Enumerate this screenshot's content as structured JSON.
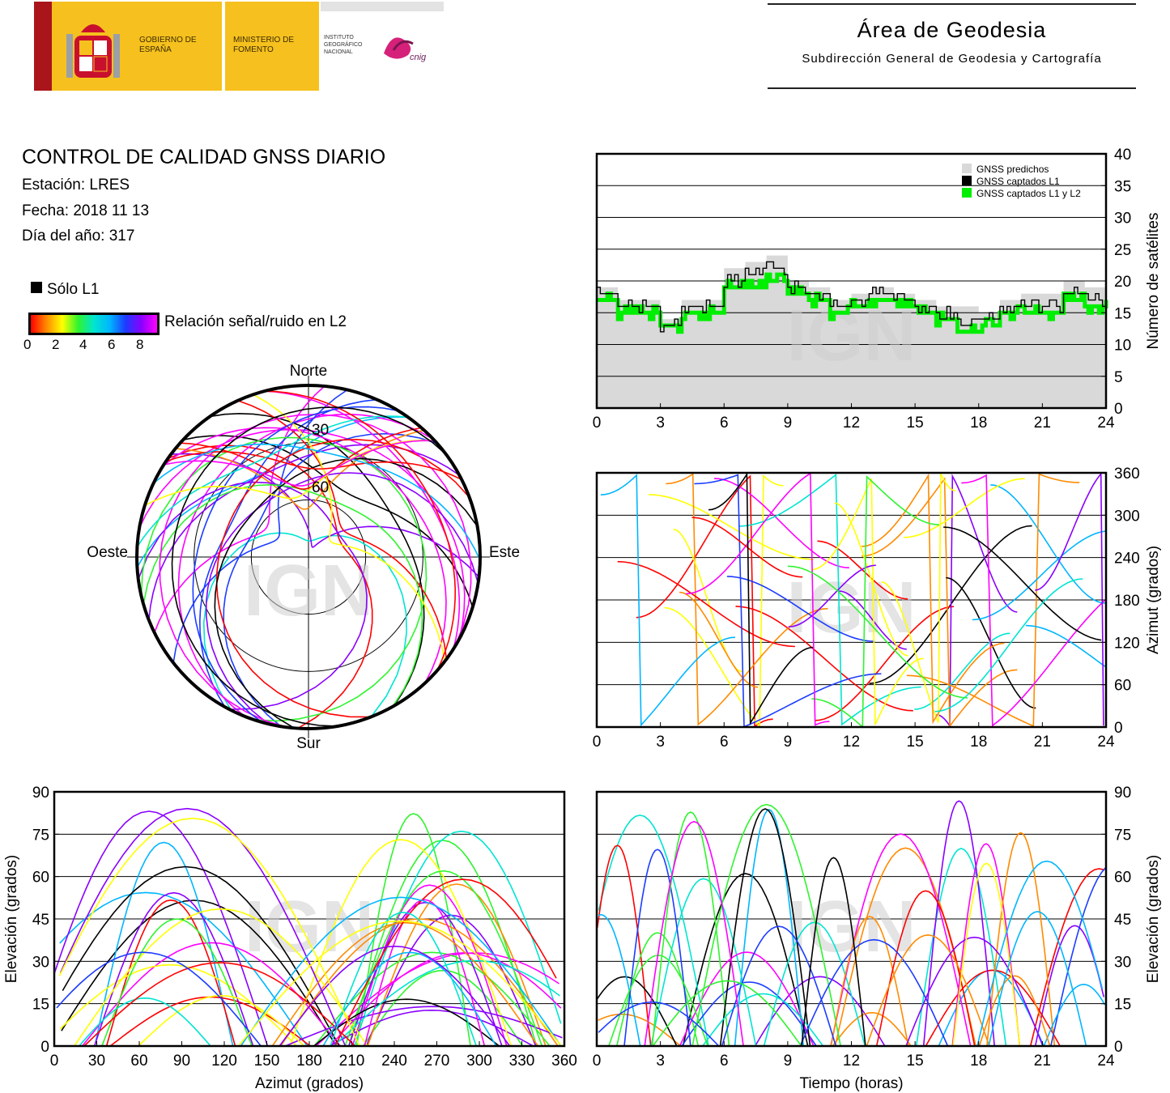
{
  "header": {
    "logo_gobierno": "GOBIERNO DE ESPAÑA",
    "logo_ministerio": "MINISTERIO DE FOMENTO",
    "logo_ign": "INSTITUTO GEOGRÁFICO NACIONAL",
    "logo_cnig": "cnig",
    "title": "Área de Geodesia",
    "subtitle": "Subdirección General de Geodesia y Cartografía"
  },
  "info": {
    "title": "CONTROL DE CALIDAD GNSS DIARIO",
    "station": "Estación: LRES",
    "date": "Fecha: 2018 11 13",
    "doy": "Día del año: 317"
  },
  "legend": {
    "l1_only": "Sólo L1",
    "snr_label": "Relación señal/ruido en L2",
    "snr_ticks": [
      "0",
      "2",
      "4",
      "6",
      "8"
    ]
  },
  "watermark": "IGN",
  "colors": {
    "predicted": "#d9d9d9",
    "l1": "#000000",
    "l1l2": "#00ee00",
    "snr_scale": [
      "#ff0000",
      "#ff8a00",
      "#ffff00",
      "#2ff42f",
      "#00e5d0",
      "#00b6ff",
      "#1c3cff",
      "#8a00ff",
      "#ff00ff"
    ]
  },
  "chart_data": [
    {
      "id": "satellites",
      "type": "area",
      "xlim": [
        0,
        24
      ],
      "ylim": [
        0,
        40
      ],
      "xticks": [
        0,
        3,
        6,
        9,
        12,
        15,
        18,
        21,
        24
      ],
      "yticks": [
        0,
        5,
        10,
        15,
        20,
        25,
        30,
        35,
        40
      ],
      "ylabel": "Número de satélites",
      "legend": [
        "GNSS predichos",
        "GNSS captados L1",
        "GNSS captados L1 y L2"
      ],
      "legend_position": "top-right",
      "x": [
        0,
        1,
        2,
        3,
        4,
        5,
        6,
        7,
        8,
        9,
        10,
        11,
        12,
        13,
        14,
        15,
        16,
        17,
        18,
        19,
        20,
        21,
        22,
        23,
        24
      ],
      "series": [
        {
          "name": "GNSS predichos",
          "values": [
            19,
            17,
            17,
            14,
            17,
            17,
            22,
            23,
            24,
            20,
            19,
            17,
            18,
            19,
            18,
            17,
            16,
            16,
            15,
            17,
            18,
            18,
            20,
            19,
            19
          ]
        },
        {
          "name": "GNSS captados L1",
          "values": [
            18,
            16,
            16,
            13,
            16,
            16,
            20,
            21,
            22,
            19,
            18,
            16,
            17,
            18,
            17,
            16,
            15,
            14,
            14,
            16,
            16,
            16,
            18,
            17,
            18
          ]
        },
        {
          "name": "GNSS captados L1 y L2",
          "values": [
            17,
            15,
            15,
            13,
            15,
            15,
            19,
            19,
            20,
            18,
            17,
            15,
            16,
            17,
            16,
            15,
            14,
            12,
            13,
            15,
            15,
            15,
            17,
            16,
            17
          ]
        }
      ]
    },
    {
      "id": "skyplot",
      "type": "scatter",
      "labels": {
        "north": "Norte",
        "south": "Sur",
        "west": "Oeste",
        "east": "Este"
      },
      "elevation_rings": [
        0,
        30,
        60
      ],
      "ring_labels": [
        "30",
        "60"
      ]
    },
    {
      "id": "azimuth_time",
      "type": "scatter",
      "xlim": [
        0,
        24
      ],
      "ylim": [
        0,
        360
      ],
      "xticks": [
        0,
        3,
        6,
        9,
        12,
        15,
        18,
        21,
        24
      ],
      "yticks": [
        0,
        60,
        120,
        180,
        240,
        300,
        360
      ],
      "ylabel": "Azimut (grados)"
    },
    {
      "id": "elevation_azimuth",
      "type": "scatter",
      "xlim": [
        0,
        360
      ],
      "ylim": [
        0,
        90
      ],
      "xticks": [
        0,
        30,
        60,
        90,
        120,
        150,
        180,
        210,
        240,
        270,
        300,
        330,
        360
      ],
      "yticks": [
        0,
        15,
        30,
        45,
        60,
        75,
        90
      ],
      "xlabel": "Azimut (grados)",
      "ylabel": "Elevación (grados)"
    },
    {
      "id": "elevation_time",
      "type": "scatter",
      "xlim": [
        0,
        24
      ],
      "ylim": [
        0,
        90
      ],
      "xticks": [
        0,
        3,
        6,
        9,
        12,
        15,
        18,
        21,
        24
      ],
      "yticks": [
        0,
        15,
        30,
        45,
        60,
        75,
        90
      ],
      "xlabel": "Tiempo (horas)",
      "ylabel": "Elevación (grados)"
    }
  ]
}
